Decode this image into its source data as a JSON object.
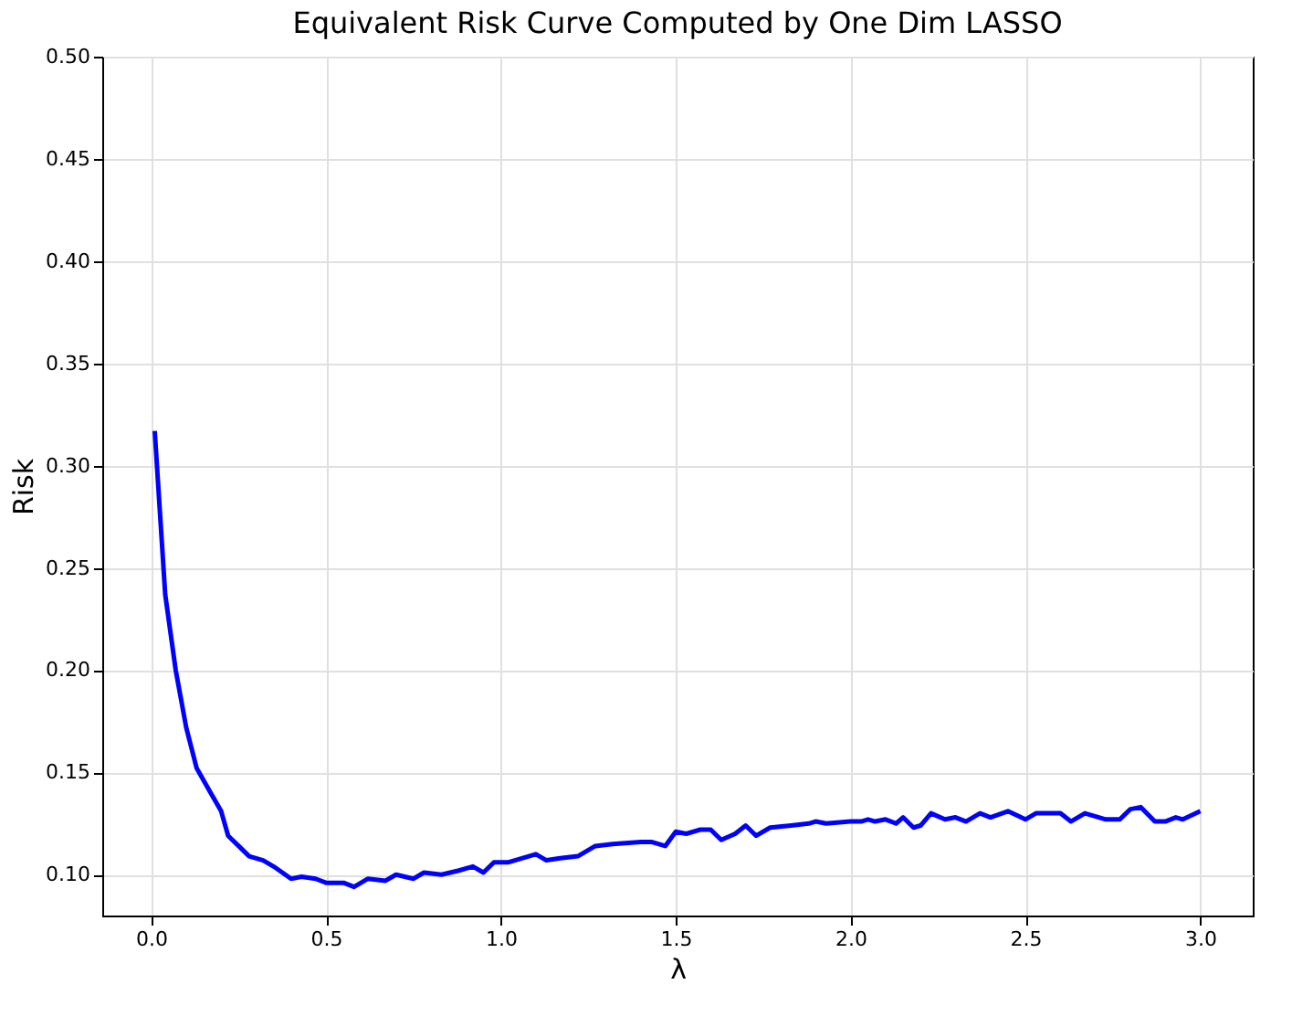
{
  "chart_data": {
    "type": "line",
    "title": "Equivalent Risk Curve Computed by One Dim LASSO",
    "xlabel": "λ",
    "ylabel": "Risk",
    "x": [
      0.01,
      0.04,
      0.07,
      0.1,
      0.13,
      0.17,
      0.2,
      0.22,
      0.25,
      0.28,
      0.32,
      0.35,
      0.4,
      0.43,
      0.47,
      0.5,
      0.55,
      0.58,
      0.62,
      0.67,
      0.7,
      0.75,
      0.78,
      0.83,
      0.88,
      0.92,
      0.95,
      0.98,
      1.02,
      1.1,
      1.13,
      1.17,
      1.22,
      1.27,
      1.32,
      1.4,
      1.43,
      1.47,
      1.5,
      1.53,
      1.57,
      1.6,
      1.63,
      1.67,
      1.7,
      1.73,
      1.77,
      1.83,
      1.88,
      1.9,
      1.93,
      2.0,
      2.03,
      2.05,
      2.07,
      2.1,
      2.13,
      2.15,
      2.18,
      2.2,
      2.23,
      2.27,
      2.3,
      2.33,
      2.37,
      2.4,
      2.45,
      2.5,
      2.53,
      2.6,
      2.63,
      2.67,
      2.73,
      2.77,
      2.8,
      2.83,
      2.87,
      2.9,
      2.93,
      2.95,
      3.0
    ],
    "series": [
      {
        "color": "#0000ff",
        "values": [
          0.317,
          0.237,
          0.2,
          0.172,
          0.152,
          0.14,
          0.131,
          0.119,
          0.114,
          0.109,
          0.107,
          0.104,
          0.098,
          0.099,
          0.098,
          0.096,
          0.096,
          0.094,
          0.098,
          0.097,
          0.1,
          0.098,
          0.101,
          0.1,
          0.102,
          0.104,
          0.101,
          0.106,
          0.106,
          0.11,
          0.107,
          0.108,
          0.109,
          0.114,
          0.115,
          0.116,
          0.116,
          0.114,
          0.121,
          0.12,
          0.122,
          0.122,
          0.117,
          0.12,
          0.124,
          0.119,
          0.123,
          0.124,
          0.125,
          0.126,
          0.125,
          0.126,
          0.126,
          0.127,
          0.126,
          0.127,
          0.125,
          0.128,
          0.123,
          0.124,
          0.13,
          0.127,
          0.128,
          0.126,
          0.13,
          0.128,
          0.131,
          0.127,
          0.13,
          0.13,
          0.126,
          0.13,
          0.127,
          0.127,
          0.132,
          0.133,
          0.126,
          0.126,
          0.128,
          0.127,
          0.131
        ]
      }
    ],
    "xlim": [
      -0.14,
      3.15
    ],
    "ylim": [
      0.08,
      0.5
    ],
    "xticks": [
      {
        "value": 0,
        "label": "0.0"
      },
      {
        "value": 0.5,
        "label": "0.5"
      },
      {
        "value": 1,
        "label": "1.0"
      },
      {
        "value": 1.5,
        "label": "1.5"
      },
      {
        "value": 2,
        "label": "2.0"
      },
      {
        "value": 2.5,
        "label": "2.5"
      },
      {
        "value": 3,
        "label": "3.0"
      }
    ],
    "yticks": [
      {
        "value": 0.1,
        "label": "0.10"
      },
      {
        "value": 0.15,
        "label": "0.15"
      },
      {
        "value": 0.2,
        "label": "0.20"
      },
      {
        "value": 0.25,
        "label": "0.25"
      },
      {
        "value": 0.3,
        "label": "0.30"
      },
      {
        "value": 0.35,
        "label": "0.35"
      },
      {
        "value": 0.4,
        "label": "0.40"
      },
      {
        "value": 0.45,
        "label": "0.45"
      },
      {
        "value": 0.5,
        "label": "0.50"
      }
    ],
    "grid": true,
    "marker": "none",
    "line_style": "solid"
  }
}
